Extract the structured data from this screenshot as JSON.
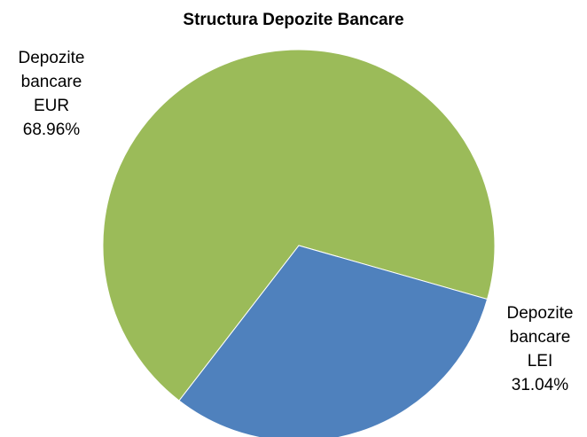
{
  "chart_data": {
    "type": "pie",
    "title": "Structura Depozite Bancare",
    "slices": [
      {
        "name_lines": [
          "Depozite",
          "bancare",
          "EUR"
        ],
        "value": 68.96,
        "label": "68.96%",
        "color": "#9BBB59"
      },
      {
        "name_lines": [
          "Depozite",
          "bancare",
          "LEI"
        ],
        "value": 31.04,
        "label": "31.04%",
        "color": "#4F81BD"
      }
    ],
    "legend": "none"
  }
}
